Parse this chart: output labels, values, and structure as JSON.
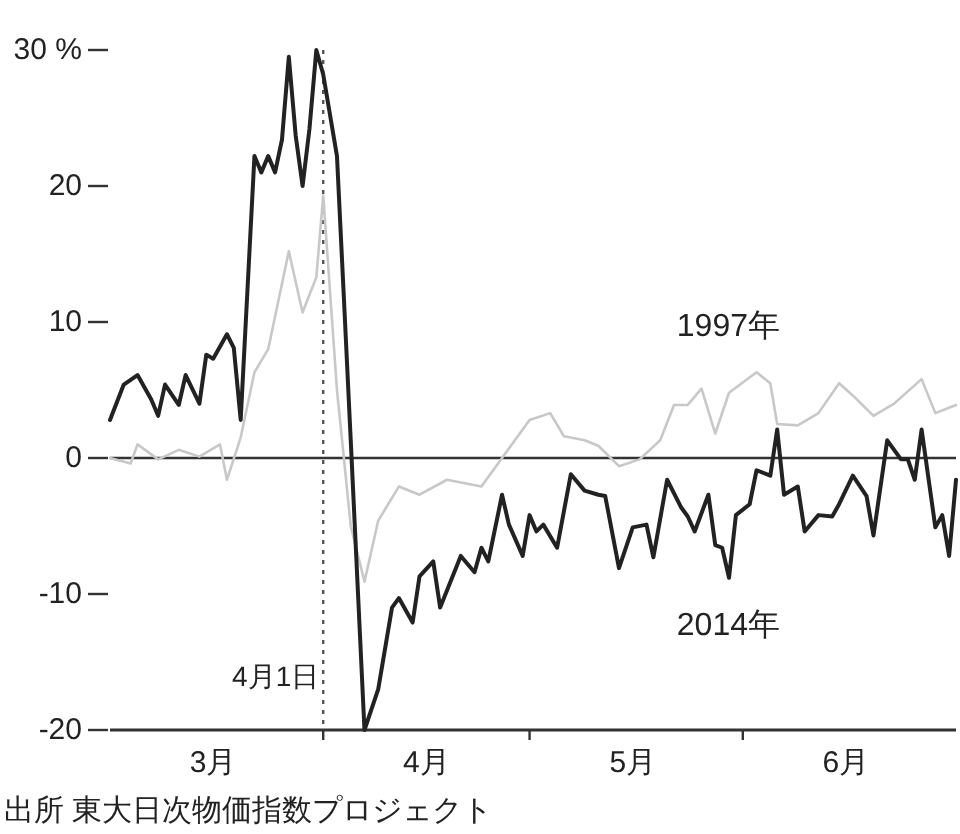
{
  "chart_data": {
    "type": "line",
    "xlim": [
      "--03-01",
      "--07-02"
    ],
    "ylim": [
      -20,
      30
    ],
    "xticks": [
      {
        "value": "--03-16",
        "label": "3月"
      },
      {
        "value": "--04-01",
        "label": null
      },
      {
        "value": "--04-16",
        "label": "4月"
      },
      {
        "value": "--05-01",
        "label": null
      },
      {
        "value": "--05-16",
        "label": "5月"
      },
      {
        "value": "--06-01",
        "label": null
      },
      {
        "value": "--06-16",
        "label": "6月"
      }
    ],
    "yticks": [
      {
        "value": 30,
        "label": "30 %"
      },
      20,
      10,
      0,
      -10,
      -20
    ],
    "series": [
      {
        "name": "1997年",
        "color": "#c8c8c8",
        "x": [
          "--03-01",
          "--03-04",
          "--03-05",
          "--03-08",
          "--03-11",
          "--03-14",
          "--03-17",
          "--03-18",
          "--03-20",
          "--03-22",
          "--03-24",
          "--03-27",
          "--03-29",
          "--03-31",
          "--04-01",
          "--04-03",
          "--04-05",
          "--04-07",
          "--04-09",
          "--04-12",
          "--04-15",
          "--04-19",
          "--04-24",
          "--04-27",
          "--05-01",
          "--05-04",
          "--05-06",
          "--05-09",
          "--05-11",
          "--05-14",
          "--05-17",
          "--05-20",
          "--05-22",
          "--05-24",
          "--05-26",
          "--05-28",
          "--05-30",
          "--06-03",
          "--06-05",
          "--06-06",
          "--06-09",
          "--06-12",
          "--06-15",
          "--06-17",
          "--06-20",
          "--06-23",
          "--06-27",
          "--06-29",
          "--07-02"
        ],
        "values": [
          0,
          -0.4,
          1.0,
          -0.1,
          0.6,
          0.1,
          1.0,
          -1.6,
          1.5,
          6.3,
          8.0,
          15.2,
          10.7,
          13.3,
          19.3,
          5.0,
          -5.0,
          -9.1,
          -4.6,
          -2.1,
          -2.7,
          -1.6,
          -2.1,
          0.0,
          2.8,
          3.3,
          1.6,
          1.3,
          0.9,
          -0.6,
          -0.1,
          1.3,
          3.9,
          3.9,
          5.1,
          1.8,
          4.8,
          6.3,
          5.5,
          2.5,
          2.4,
          3.3,
          5.5,
          4.6,
          3.1,
          4.0,
          5.8,
          3.3,
          3.9
        ]
      },
      {
        "name": "2014年",
        "color": "#222222",
        "x": [
          "--03-01",
          "--03-03",
          "--03-05",
          "--03-07",
          "--03-08",
          "--03-09",
          "--03-11",
          "--03-12",
          "--03-14",
          "--03-15",
          "--03-16",
          "--03-18",
          "--03-19",
          "--03-20",
          "--03-22",
          "--03-23",
          "--03-24",
          "--03-25",
          "--03-26",
          "--03-27",
          "--03-28",
          "--03-29",
          "--03-30",
          "--03-31",
          "--04-01",
          "--04-03",
          "--04-04",
          "--04-05",
          "--04-07",
          "--04-09",
          "--04-11",
          "--04-12",
          "--04-14",
          "--04-15",
          "--04-17",
          "--04-18",
          "--04-21",
          "--04-23",
          "--04-24",
          "--04-25",
          "--04-27",
          "--04-28",
          "--04-30",
          "--05-01",
          "--05-02",
          "--05-03",
          "--05-05",
          "--05-07",
          "--05-09",
          "--05-11",
          "--05-12",
          "--05-14",
          "--05-16",
          "--05-18",
          "--05-19",
          "--05-21",
          "--05-23",
          "--05-24",
          "--05-25",
          "--05-27",
          "--05-28",
          "--05-29",
          "--05-30",
          "--05-31",
          "--06-02",
          "--06-03",
          "--06-05",
          "--06-06",
          "--06-07",
          "--06-09",
          "--06-10",
          "--06-12",
          "--06-14",
          "--06-15",
          "--06-17",
          "--06-19",
          "--06-20",
          "--06-22",
          "--06-24",
          "--06-25",
          "--06-26",
          "--06-27",
          "--06-29",
          "--06-30",
          "--07-01",
          "--07-02"
        ],
        "values": [
          2.8,
          5.4,
          6.1,
          4.3,
          3.1,
          5.4,
          3.9,
          6.1,
          4.0,
          7.6,
          7.3,
          9.1,
          8.1,
          2.8,
          22.2,
          21.0,
          22.2,
          21.0,
          23.4,
          29.5,
          23.7,
          20.0,
          24.2,
          30,
          28.2,
          22.2,
          11.8,
          1.3,
          -20,
          -17.0,
          -11.0,
          -10.3,
          -12.1,
          -8.7,
          -7.6,
          -11.0,
          -7.2,
          -8.4,
          -6.6,
          -7.6,
          -2.7,
          -4.9,
          -7.2,
          -4.2,
          -5.4,
          -4.9,
          -6.6,
          -1.2,
          -2.4,
          -2.7,
          -2.8,
          -8.1,
          -5.1,
          -4.9,
          -7.3,
          -1.6,
          -3.6,
          -4.3,
          -5.4,
          -2.7,
          -6.4,
          -6.6,
          -8.8,
          -4.2,
          -3.4,
          -0.9,
          -1.3,
          2.1,
          -2.7,
          -2.1,
          -5.4,
          -4.2,
          -4.3,
          -3.4,
          -1.3,
          -2.8,
          -5.7,
          1.3,
          -0.1,
          -0.1,
          -1.6,
          2.1,
          -5.1,
          -4.2,
          -7.2,
          -1.6
        ]
      }
    ],
    "ref_lines": [
      {
        "axis": "y",
        "value": 0,
        "label": null,
        "color": "#333333",
        "line_style": "solid"
      },
      {
        "axis": "x",
        "value": "--04-01",
        "label": "4月1日",
        "color": "#555555",
        "line_style": "dotted"
      }
    ],
    "annotations": [
      "出所 東大日次物価指数プロジェクト"
    ]
  }
}
